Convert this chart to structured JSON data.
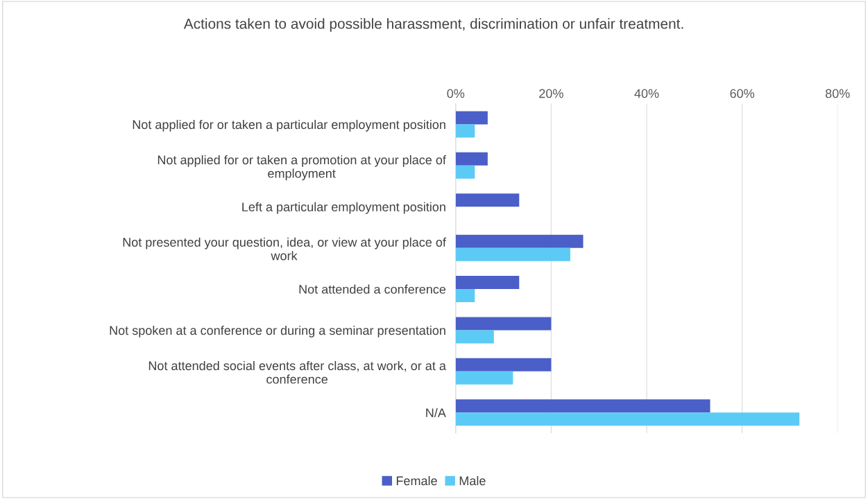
{
  "chart_data": {
    "type": "bar",
    "orientation": "horizontal",
    "title": "Actions taken to avoid possible harassment, discrimination or unfair treatment.",
    "categories": [
      "Not applied for or taken a particular employment position",
      "Not applied for or taken a promotion at your place of\nemployment",
      "Left a particular employment position",
      "Not presented your question, idea, or view at your place of\nwork",
      "Not attended a conference",
      "Not spoken at a conference or during a seminar presentation",
      "Not attended social events after class, at work, or at a\nconference",
      "N/A"
    ],
    "series": [
      {
        "name": "Female",
        "color": "#4a5fc8",
        "values": [
          6.7,
          6.7,
          13.3,
          26.7,
          13.3,
          20,
          20,
          53.3
        ]
      },
      {
        "name": "Male",
        "color": "#5bcbf5",
        "values": [
          4,
          4,
          0,
          24,
          4,
          8,
          12,
          72
        ]
      }
    ],
    "xlim": [
      0,
      80
    ],
    "xticks": [
      {
        "value": 0,
        "label": "0%"
      },
      {
        "value": 20,
        "label": "20%"
      },
      {
        "value": 40,
        "label": "40%"
      },
      {
        "value": 60,
        "label": "60%"
      },
      {
        "value": 80,
        "label": "80%"
      }
    ],
    "grid": "x",
    "legend": "bottom"
  }
}
